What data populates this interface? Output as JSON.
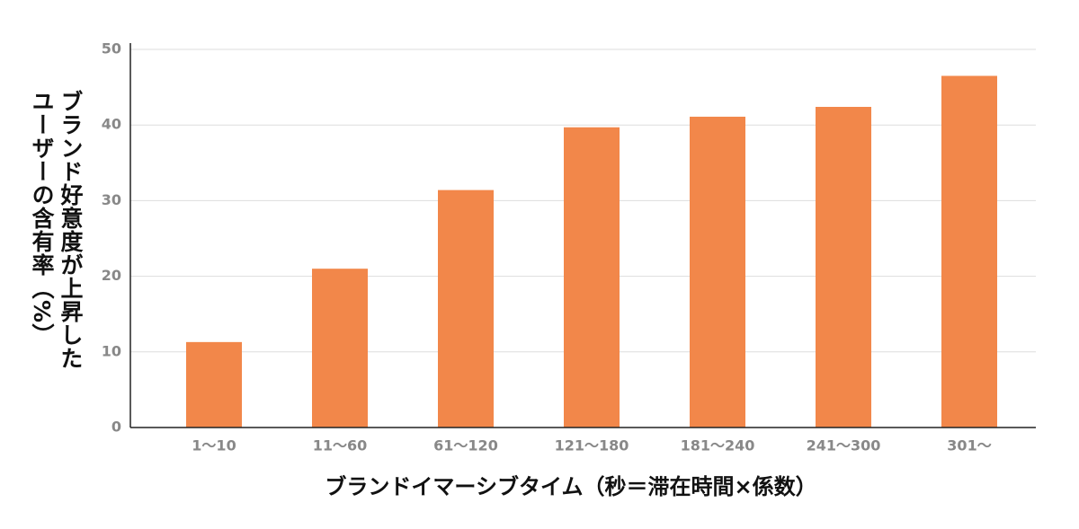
{
  "chart_data": {
    "type": "bar",
    "xlabel": "ブランドイマーシブタイム（秒＝滞在時間×係数）",
    "ylabel": [
      "ブランド好意度が上昇した",
      "ユーザーの含有率（%）"
    ],
    "categories": [
      "1～10",
      "11～60",
      "61～120",
      "121～180",
      "181～240",
      "241～300",
      "301～"
    ],
    "values": [
      11.3,
      21.0,
      31.4,
      39.7,
      41.1,
      42.4,
      46.5
    ],
    "color": "#f2874a",
    "ylim": [
      0,
      50
    ],
    "yticks": [
      0,
      10,
      20,
      30,
      40,
      50
    ],
    "grid": true
  }
}
